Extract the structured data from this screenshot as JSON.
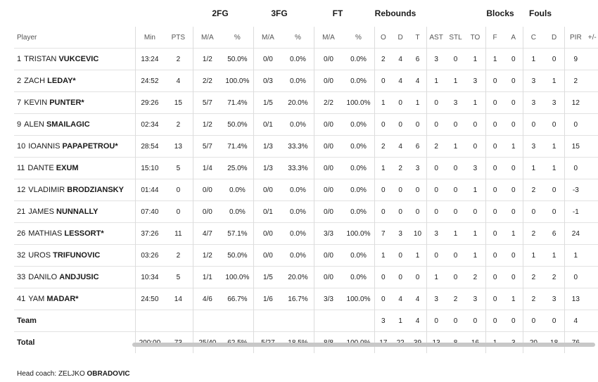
{
  "groups": {
    "fg2": "2FG",
    "fg3": "3FG",
    "ft": "FT",
    "reb": "Rebounds",
    "blk": "Blocks",
    "fouls": "Fouls"
  },
  "headers": {
    "player": "Player",
    "min": "Min",
    "pts": "PTS",
    "fg2_ma": "M/A",
    "fg2_pct": "%",
    "fg3_ma": "M/A",
    "fg3_pct": "%",
    "ft_ma": "M/A",
    "ft_pct": "%",
    "o": "O",
    "d": "D",
    "t": "T",
    "ast": "AST",
    "stl": "STL",
    "to": "TO",
    "f": "F",
    "a": "A",
    "c": "C",
    "dr": "D",
    "pir": "PIR",
    "pm": "+/-"
  },
  "players": [
    {
      "num": "1",
      "first": "TRISTAN",
      "last": "VUKCEVIC",
      "min": "13:24",
      "pts": "2",
      "fg2": "1/2",
      "fg2p": "50.0%",
      "fg3": "0/0",
      "fg3p": "0.0%",
      "ft": "0/0",
      "ftp": "0.0%",
      "o": "2",
      "d": "4",
      "t": "6",
      "ast": "3",
      "stl": "0",
      "to": "1",
      "bf": "1",
      "ba": "0",
      "fc": "1",
      "fd": "0",
      "pir": "9"
    },
    {
      "num": "2",
      "first": "ZACH",
      "last": "LEDAY*",
      "min": "24:52",
      "pts": "4",
      "fg2": "2/2",
      "fg2p": "100.0%",
      "fg3": "0/3",
      "fg3p": "0.0%",
      "ft": "0/0",
      "ftp": "0.0%",
      "o": "0",
      "d": "4",
      "t": "4",
      "ast": "1",
      "stl": "1",
      "to": "3",
      "bf": "0",
      "ba": "0",
      "fc": "3",
      "fd": "1",
      "pir": "2"
    },
    {
      "num": "7",
      "first": "KEVIN",
      "last": "PUNTER*",
      "min": "29:26",
      "pts": "15",
      "fg2": "5/7",
      "fg2p": "71.4%",
      "fg3": "1/5",
      "fg3p": "20.0%",
      "ft": "2/2",
      "ftp": "100.0%",
      "o": "1",
      "d": "0",
      "t": "1",
      "ast": "0",
      "stl": "3",
      "to": "1",
      "bf": "0",
      "ba": "0",
      "fc": "3",
      "fd": "3",
      "pir": "12"
    },
    {
      "num": "9",
      "first": "ALEN",
      "last": "SMAILAGIC",
      "min": "02:34",
      "pts": "2",
      "fg2": "1/2",
      "fg2p": "50.0%",
      "fg3": "0/1",
      "fg3p": "0.0%",
      "ft": "0/0",
      "ftp": "0.0%",
      "o": "0",
      "d": "0",
      "t": "0",
      "ast": "0",
      "stl": "0",
      "to": "0",
      "bf": "0",
      "ba": "0",
      "fc": "0",
      "fd": "0",
      "pir": "0"
    },
    {
      "num": "10",
      "first": "IOANNIS",
      "last": "PAPAPETROU*",
      "min": "28:54",
      "pts": "13",
      "fg2": "5/7",
      "fg2p": "71.4%",
      "fg3": "1/3",
      "fg3p": "33.3%",
      "ft": "0/0",
      "ftp": "0.0%",
      "o": "2",
      "d": "4",
      "t": "6",
      "ast": "2",
      "stl": "1",
      "to": "0",
      "bf": "0",
      "ba": "1",
      "fc": "3",
      "fd": "1",
      "pir": "15"
    },
    {
      "num": "11",
      "first": "DANTE",
      "last": "EXUM",
      "min": "15:10",
      "pts": "5",
      "fg2": "1/4",
      "fg2p": "25.0%",
      "fg3": "1/3",
      "fg3p": "33.3%",
      "ft": "0/0",
      "ftp": "0.0%",
      "o": "1",
      "d": "2",
      "t": "3",
      "ast": "0",
      "stl": "0",
      "to": "3",
      "bf": "0",
      "ba": "0",
      "fc": "1",
      "fd": "1",
      "pir": "0"
    },
    {
      "num": "12",
      "first": "VLADIMIR",
      "last": "BRODZIANSKY",
      "min": "01:44",
      "pts": "0",
      "fg2": "0/0",
      "fg2p": "0.0%",
      "fg3": "0/0",
      "fg3p": "0.0%",
      "ft": "0/0",
      "ftp": "0.0%",
      "o": "0",
      "d": "0",
      "t": "0",
      "ast": "0",
      "stl": "0",
      "to": "1",
      "bf": "0",
      "ba": "0",
      "fc": "2",
      "fd": "0",
      "pir": "-3"
    },
    {
      "num": "21",
      "first": "JAMES",
      "last": "NUNNALLY",
      "min": "07:40",
      "pts": "0",
      "fg2": "0/0",
      "fg2p": "0.0%",
      "fg3": "0/1",
      "fg3p": "0.0%",
      "ft": "0/0",
      "ftp": "0.0%",
      "o": "0",
      "d": "0",
      "t": "0",
      "ast": "0",
      "stl": "0",
      "to": "0",
      "bf": "0",
      "ba": "0",
      "fc": "0",
      "fd": "0",
      "pir": "-1"
    },
    {
      "num": "26",
      "first": "MATHIAS",
      "last": "LESSORT*",
      "min": "37:26",
      "pts": "11",
      "fg2": "4/7",
      "fg2p": "57.1%",
      "fg3": "0/0",
      "fg3p": "0.0%",
      "ft": "3/3",
      "ftp": "100.0%",
      "o": "7",
      "d": "3",
      "t": "10",
      "ast": "3",
      "stl": "1",
      "to": "1",
      "bf": "0",
      "ba": "1",
      "fc": "2",
      "fd": "6",
      "pir": "24"
    },
    {
      "num": "32",
      "first": "UROS",
      "last": "TRIFUNOVIC",
      "min": "03:26",
      "pts": "2",
      "fg2": "1/2",
      "fg2p": "50.0%",
      "fg3": "0/0",
      "fg3p": "0.0%",
      "ft": "0/0",
      "ftp": "0.0%",
      "o": "1",
      "d": "0",
      "t": "1",
      "ast": "0",
      "stl": "0",
      "to": "1",
      "bf": "0",
      "ba": "0",
      "fc": "1",
      "fd": "1",
      "pir": "1"
    },
    {
      "num": "33",
      "first": "DANILO",
      "last": "ANDJUSIC",
      "min": "10:34",
      "pts": "5",
      "fg2": "1/1",
      "fg2p": "100.0%",
      "fg3": "1/5",
      "fg3p": "20.0%",
      "ft": "0/0",
      "ftp": "0.0%",
      "o": "0",
      "d": "0",
      "t": "0",
      "ast": "1",
      "stl": "0",
      "to": "2",
      "bf": "0",
      "ba": "0",
      "fc": "2",
      "fd": "2",
      "pir": "0"
    },
    {
      "num": "41",
      "first": "YAM",
      "last": "MADAR*",
      "min": "24:50",
      "pts": "14",
      "fg2": "4/6",
      "fg2p": "66.7%",
      "fg3": "1/6",
      "fg3p": "16.7%",
      "ft": "3/3",
      "ftp": "100.0%",
      "o": "0",
      "d": "4",
      "t": "4",
      "ast": "3",
      "stl": "2",
      "to": "3",
      "bf": "0",
      "ba": "1",
      "fc": "2",
      "fd": "3",
      "pir": "13"
    }
  ],
  "team": {
    "label": "Team",
    "o": "3",
    "d": "1",
    "t": "4",
    "ast": "0",
    "stl": "0",
    "to": "0",
    "bf": "0",
    "ba": "0",
    "fc": "0",
    "fd": "0",
    "pir": "4"
  },
  "total": {
    "label": "Total",
    "min": "200:00",
    "pts": "73",
    "fg2": "25/40",
    "fg2p": "62.5%",
    "fg3": "5/27",
    "fg3p": "18.5%",
    "ft": "8/8",
    "ftp": "100.0%",
    "o": "17",
    "d": "22",
    "t": "39",
    "ast": "13",
    "stl": "8",
    "to": "16",
    "bf": "1",
    "ba": "3",
    "fc": "20",
    "fd": "18",
    "pir": "76"
  },
  "coach": {
    "label": "Head coach:",
    "first": "ZELJKO",
    "last": "OBRADOVIC"
  }
}
